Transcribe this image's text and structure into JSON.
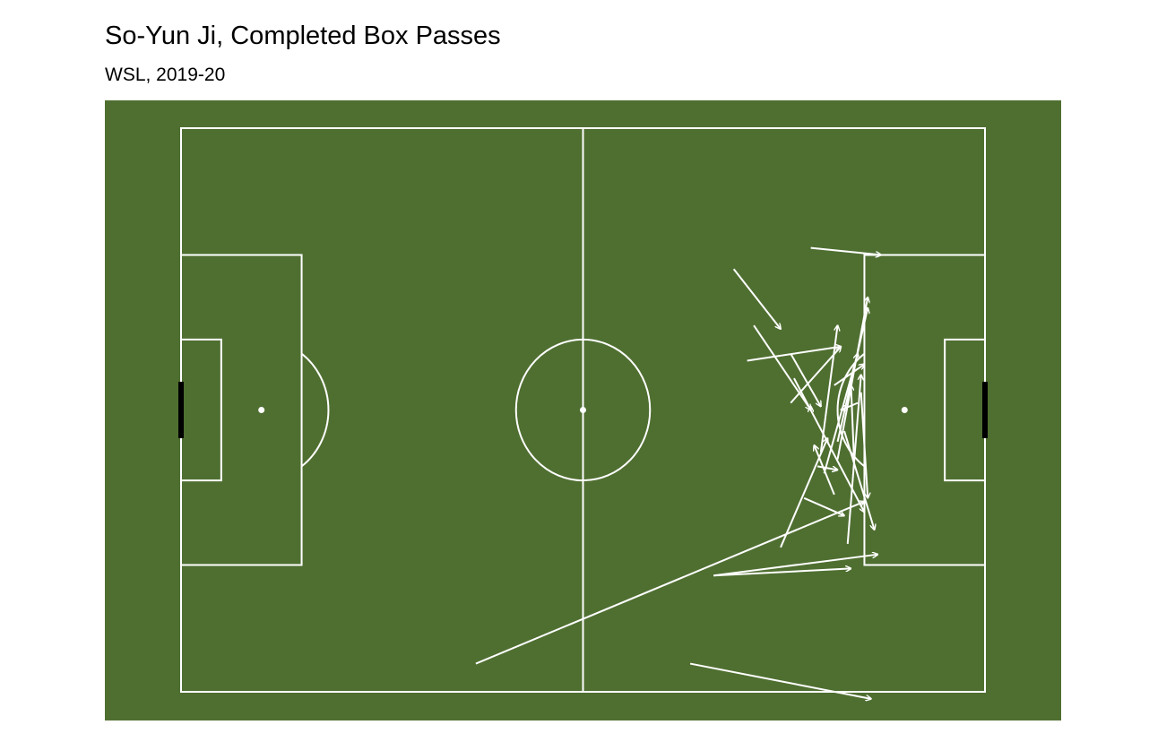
{
  "chart_data": {
    "type": "pass-map",
    "title": "So-Yun Ji, Completed Box Passes",
    "subtitle": "WSL, 2019-20",
    "pitch": {
      "length": 120,
      "width": 80,
      "direction": "left-to-right"
    },
    "colors": {
      "pitch": "#4f6f31",
      "lines": "#ffffff",
      "passes": "#ffffff",
      "goal": "#000000"
    },
    "passes": [
      {
        "start": [
          44.0,
          76.0
        ],
        "end": [
          102.0,
          53.0
        ]
      },
      {
        "start": [
          79.5,
          63.5
        ],
        "end": [
          104.0,
          60.5
        ]
      },
      {
        "start": [
          79.5,
          63.5
        ],
        "end": [
          100.0,
          62.5
        ]
      },
      {
        "start": [
          76.0,
          76.0
        ],
        "end": [
          103.0,
          81.0
        ]
      },
      {
        "start": [
          91.5,
          35.5
        ],
        "end": [
          102.0,
          54.5
        ]
      },
      {
        "start": [
          101.5,
          37.5
        ],
        "end": [
          102.5,
          52.5
        ]
      },
      {
        "start": [
          85.5,
          28.0
        ],
        "end": [
          94.0,
          40.0
        ]
      },
      {
        "start": [
          82.5,
          20.0
        ],
        "end": [
          89.5,
          28.5
        ]
      },
      {
        "start": [
          84.5,
          33.0
        ],
        "end": [
          98.5,
          31.0
        ]
      },
      {
        "start": [
          94.0,
          17.0
        ],
        "end": [
          104.5,
          18.0
        ]
      },
      {
        "start": [
          99.0,
          43.0
        ],
        "end": [
          103.5,
          57.0
        ]
      },
      {
        "start": [
          91.0,
          32.0
        ],
        "end": [
          95.5,
          39.5
        ]
      },
      {
        "start": [
          93.0,
          52.5
        ],
        "end": [
          99.0,
          55.0
        ]
      },
      {
        "start": [
          95.0,
          48.0
        ],
        "end": [
          98.0,
          48.5
        ]
      },
      {
        "start": [
          97.5,
          52.0
        ],
        "end": [
          94.5,
          45.0
        ]
      },
      {
        "start": [
          101.0,
          39.0
        ],
        "end": [
          98.5,
          40.0
        ]
      },
      {
        "start": [
          89.5,
          59.5
        ],
        "end": [
          96.5,
          44.0
        ]
      },
      {
        "start": [
          98.0,
          44.5
        ],
        "end": [
          102.5,
          25.5
        ]
      },
      {
        "start": [
          96.0,
          49.0
        ],
        "end": [
          101.0,
          32.0
        ]
      },
      {
        "start": [
          97.5,
          36.5
        ],
        "end": [
          102.0,
          33.5
        ]
      },
      {
        "start": [
          100.5,
          48.0
        ],
        "end": [
          100.0,
          36.5
        ]
      },
      {
        "start": [
          95.5,
          46.0
        ],
        "end": [
          98.0,
          28.0
        ]
      },
      {
        "start": [
          99.5,
          59.0
        ],
        "end": [
          101.5,
          35.0
        ]
      },
      {
        "start": [
          98.0,
          47.0
        ],
        "end": [
          102.5,
          24.0
        ]
      },
      {
        "start": [
          91.0,
          39.0
        ],
        "end": [
          98.5,
          31.0
        ]
      },
      {
        "start": [
          94.0,
          40.0
        ],
        "end": [
          94.0,
          39.5
        ]
      }
    ]
  }
}
